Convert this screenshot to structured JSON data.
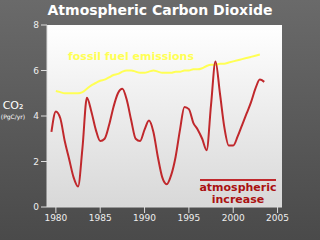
{
  "chart_data": {
    "type": "line",
    "title": "Atmospheric Carbon Dioxide",
    "ylabel": "CO₂ (PgC/yr)",
    "x": [
      1979.5,
      1980,
      1980.5,
      1981,
      1981.5,
      1982,
      1982.5,
      1983,
      1983.5,
      1984,
      1984.5,
      1985,
      1985.5,
      1986,
      1986.5,
      1987,
      1987.5,
      1988,
      1988.5,
      1989,
      1989.5,
      1990,
      1990.5,
      1991,
      1991.5,
      1992,
      1992.5,
      1993,
      1993.5,
      1994,
      1994.5,
      1995,
      1995.5,
      1996,
      1996.5,
      1997,
      1997.5,
      1998,
      1998.5,
      1999,
      1999.5,
      2000,
      2000.5,
      2001,
      2001.5,
      2002,
      2002.5,
      2003,
      2003.5
    ],
    "series": [
      {
        "name": "fossil fuel emissions",
        "color": "#ffff55",
        "values": [
          null,
          5.1,
          5.05,
          5.0,
          5.0,
          5.0,
          5.0,
          5.05,
          5.2,
          5.35,
          5.45,
          5.55,
          5.6,
          5.7,
          5.8,
          5.85,
          5.95,
          6.0,
          6.0,
          5.95,
          5.9,
          5.9,
          5.95,
          6.0,
          5.95,
          5.9,
          5.9,
          5.9,
          5.95,
          5.95,
          6.0,
          6.0,
          6.05,
          6.05,
          6.1,
          6.2,
          6.25,
          6.25,
          6.3,
          6.3,
          6.35,
          6.4,
          6.45,
          6.5,
          6.55,
          6.6,
          6.65,
          6.7,
          null
        ]
      },
      {
        "name": "atmospheric increase",
        "color": "#c0282c",
        "values": [
          3.3,
          4.2,
          3.9,
          2.9,
          2.1,
          1.3,
          0.9,
          2.6,
          4.8,
          4.2,
          3.4,
          2.9,
          3.0,
          3.6,
          4.4,
          5.0,
          5.2,
          4.7,
          3.8,
          3.0,
          2.9,
          3.4,
          3.8,
          3.3,
          2.2,
          1.3,
          1.0,
          1.4,
          2.2,
          3.4,
          4.4,
          4.3,
          3.7,
          3.4,
          3.0,
          2.5,
          4.5,
          6.4,
          5.0,
          3.5,
          2.7,
          2.7,
          3.1,
          3.6,
          4.1,
          4.6,
          5.2,
          5.6,
          5.5
        ]
      }
    ],
    "xlim": [
      1979,
      2005.5
    ],
    "xticks": [
      1980,
      1985,
      1990,
      1995,
      2000,
      2005
    ],
    "ylim": [
      0,
      8
    ],
    "yticks": [
      0,
      2,
      4,
      6,
      8
    ],
    "grid": false,
    "annotations": [
      {
        "text": "fossil fuel emissions",
        "color": "#ffff55"
      },
      {
        "text": "atmospheric increase",
        "color": "#aa1111"
      }
    ]
  }
}
